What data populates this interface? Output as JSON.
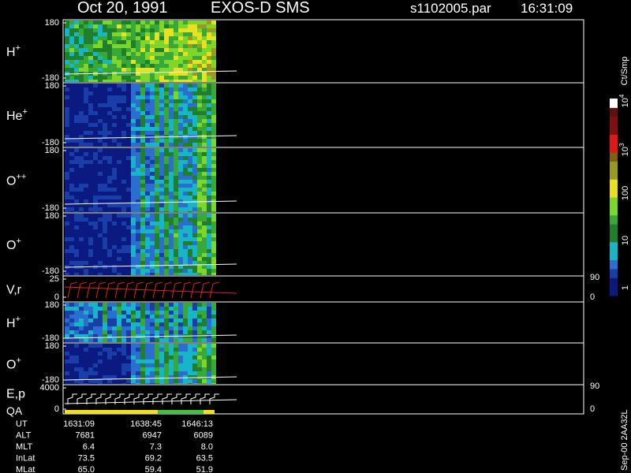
{
  "header": {
    "date": "Oct 20, 1991",
    "instrument": "EXOS-D SMS",
    "file": "s1102005.par",
    "time": "16:31:09"
  },
  "panels": [
    {
      "label": "H",
      "sup": "+",
      "ticks": [
        "180",
        "-180"
      ]
    },
    {
      "label": "He",
      "sup": "+",
      "ticks": [
        "180",
        "-180"
      ]
    },
    {
      "label": "O",
      "sup": "++",
      "ticks": [
        "180",
        "-180"
      ]
    },
    {
      "label": "O",
      "sup": "+",
      "ticks": [
        "180",
        "-180"
      ]
    },
    {
      "label": "V,r",
      "ticks": [
        "25",
        "0"
      ],
      "right_ticks": [
        "90",
        "0"
      ]
    },
    {
      "label": "H",
      "sup": "+",
      "ticks": [
        "180",
        "-180"
      ]
    },
    {
      "label": "O",
      "sup": "+",
      "ticks": [
        "180",
        "-180"
      ]
    },
    {
      "label": "E,p",
      "label2": "QA",
      "ticks": [
        "4000",
        "0"
      ],
      "right_ticks": [
        "90",
        "0"
      ]
    }
  ],
  "colorbar": {
    "unit": "Ct/Smp",
    "ticks": [
      {
        "base": "10",
        "exp": "4"
      },
      {
        "base": "10",
        "exp": "3"
      },
      {
        "base": "100"
      },
      {
        "base": "10"
      },
      {
        "base": "1"
      }
    ]
  },
  "table": {
    "rows": [
      [
        "UT",
        "1631:09",
        "1638:45",
        "1646:13"
      ],
      [
        "ALT",
        "7681",
        "6947",
        "6089"
      ],
      [
        "MLT",
        "6.4",
        "7.3",
        "8.0"
      ],
      [
        "InLat",
        "73.5",
        "69.2",
        "63.5"
      ],
      [
        "MLat",
        "65.0",
        "59.4",
        "51.9"
      ]
    ]
  },
  "footer": "Sep-00  2AA32L"
}
